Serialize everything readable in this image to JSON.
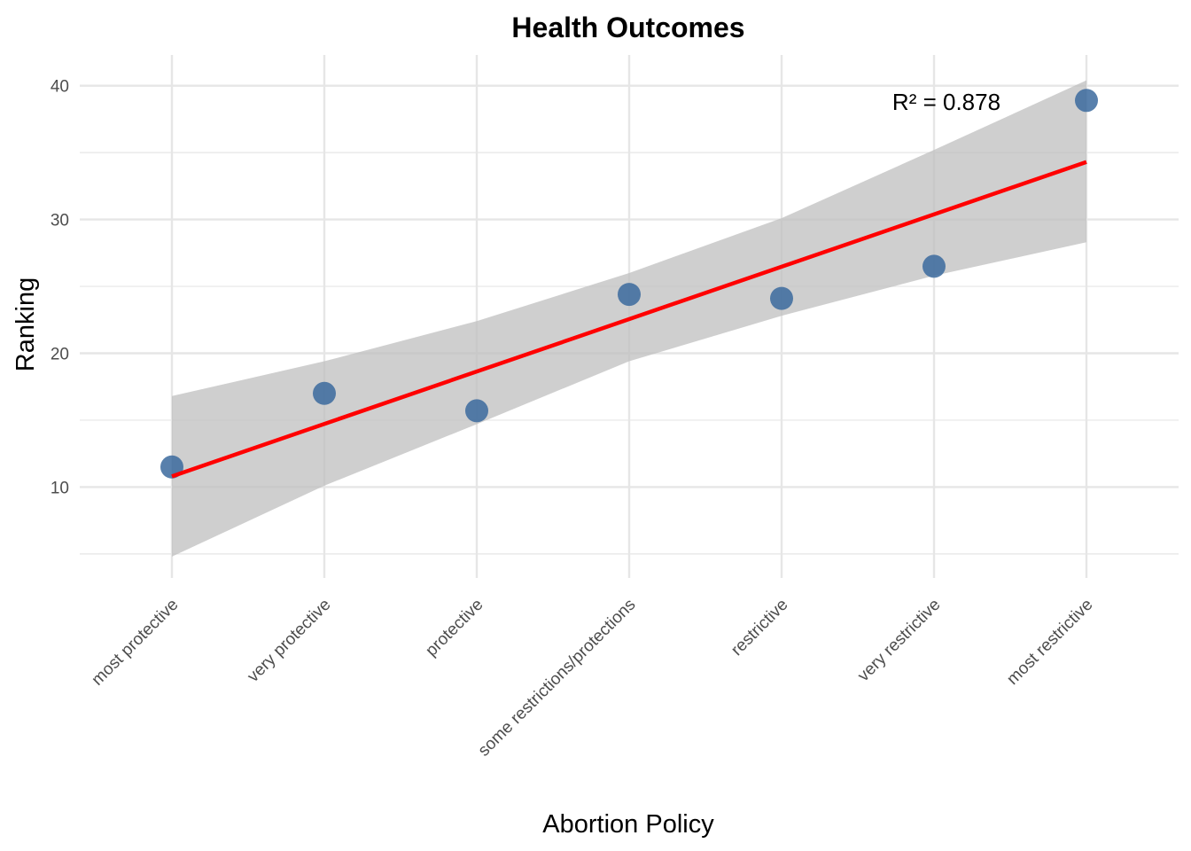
{
  "chart_data": {
    "type": "scatter",
    "title": "Health Outcomes",
    "xlabel": "Abortion Policy",
    "ylabel": "Ranking",
    "categories": [
      "most protective",
      "very protective",
      "protective",
      "some restrictions/protections",
      "restrictive",
      "very restrictive",
      "most restrictive"
    ],
    "values": [
      11.5,
      17.0,
      15.7,
      24.4,
      24.1,
      26.5,
      38.9
    ],
    "fit": {
      "start": 10.8,
      "end": 34.3
    },
    "ci": {
      "upper": [
        16.8,
        19.4,
        22.4,
        26.0,
        30.1,
        35.2,
        40.4
      ],
      "lower": [
        4.8,
        10.1,
        14.7,
        19.4,
        22.8,
        25.8,
        28.3
      ]
    },
    "annotation": "R² = 0.878",
    "ylim": [
      3.2,
      42.3
    ],
    "yticks": [
      10,
      20,
      30,
      40
    ],
    "grid": true,
    "colors": {
      "points": "#3b6a9e",
      "fit_line": "#ff0000",
      "ribbon": "#bfbfbf",
      "grid": "#e6e6e6"
    }
  }
}
